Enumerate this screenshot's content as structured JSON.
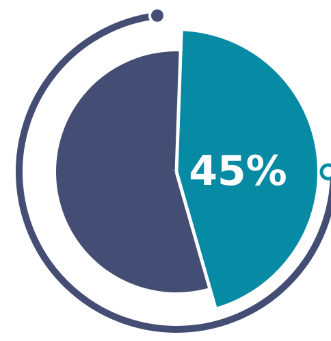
{
  "chart_data": {
    "type": "pie",
    "slices": [
      {
        "value": 45,
        "label": "45%",
        "color": "#078ba5"
      },
      {
        "value": 55,
        "label": "",
        "color": "#444d73"
      }
    ]
  },
  "colors": {
    "ring": "#444d73",
    "highlight": "#078ba5",
    "background": "#ffffff"
  }
}
